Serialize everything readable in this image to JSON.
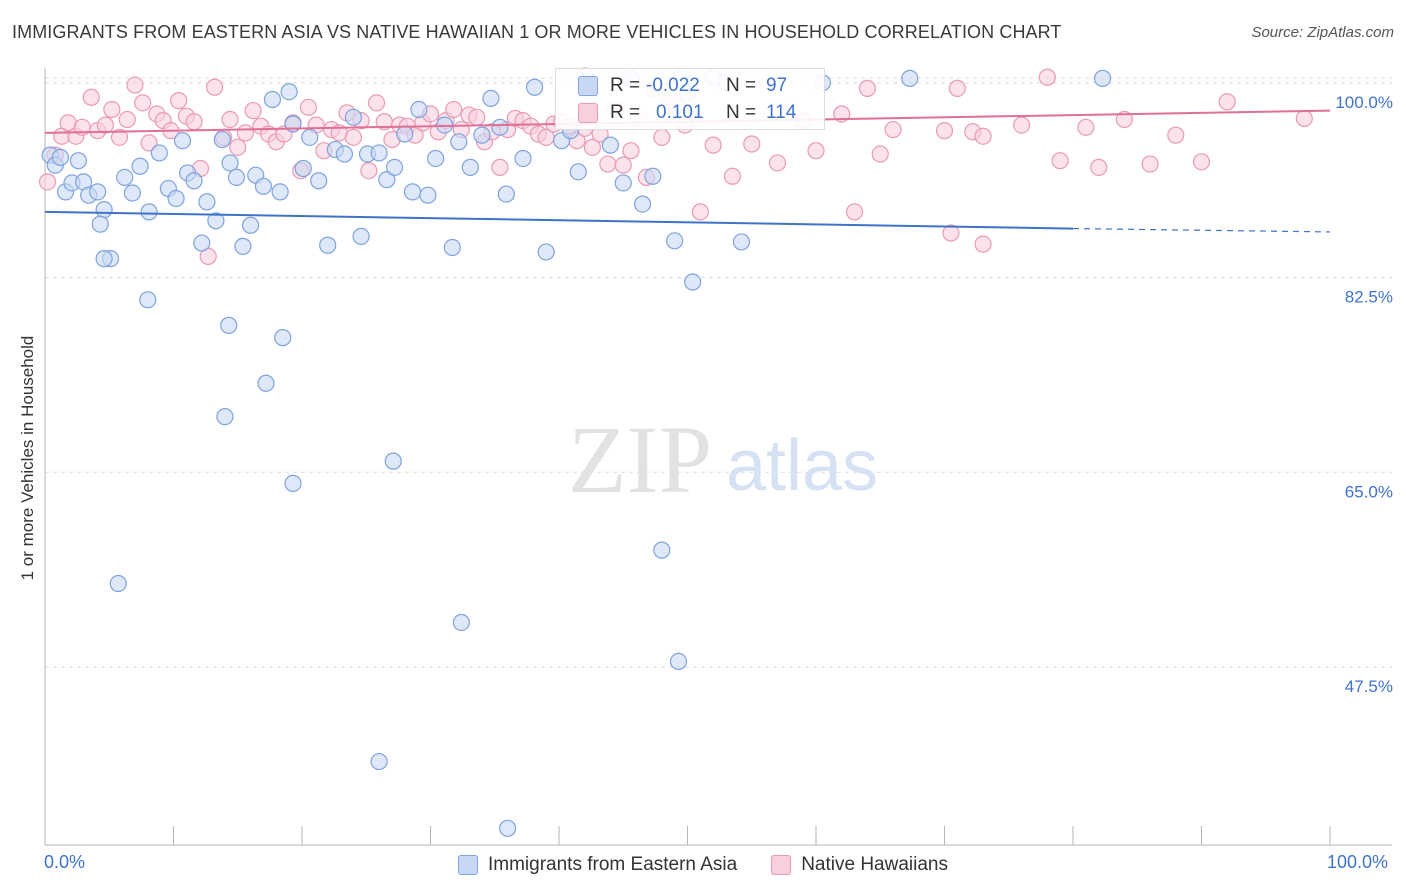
{
  "title": "IMMIGRANTS FROM EASTERN ASIA VS NATIVE HAWAIIAN 1 OR MORE VEHICLES IN HOUSEHOLD CORRELATION CHART",
  "source": "Source: ZipAtlas.com",
  "watermark": {
    "zip": "ZIP",
    "atlas": "atlas"
  },
  "colors": {
    "blue_fill": "#c8d8f4",
    "blue_stroke": "#7ea3dd",
    "blue_line": "#3f73c9",
    "pink_fill": "#f8cfdd",
    "pink_stroke": "#e99ab6",
    "pink_line": "#e07095",
    "tick_text": "#3f73c9",
    "grid": "#dcdcdc"
  },
  "stats": {
    "blue": {
      "r_label": "R =",
      "r_value": "-0.022",
      "n_label": "N =",
      "n_value": "97"
    },
    "pink": {
      "r_label": "R =",
      "r_value": "0.101",
      "n_label": "N =",
      "n_value": "114"
    }
  },
  "chart_data": {
    "type": "scatter",
    "title": "IMMIGRANTS FROM EASTERN ASIA VS NATIVE HAWAIIAN 1 OR MORE VEHICLES IN HOUSEHOLD CORRELATION CHART",
    "xlabel": "",
    "ylabel": "1 or more Vehicles in Household",
    "xlim": [
      0,
      100
    ],
    "ylim": [
      31.5,
      102.5
    ],
    "x_tick_labels": {
      "left": "0.0%",
      "right": "100.0%"
    },
    "y_ticks": [
      {
        "value": 100.0,
        "label": "100.0%"
      },
      {
        "value": 82.5,
        "label": "82.5%"
      },
      {
        "value": 65.0,
        "label": "65.0%"
      },
      {
        "value": 47.5,
        "label": "47.5%"
      }
    ],
    "legend": [
      "Immigrants from Eastern Asia",
      "Native Hawaiians"
    ],
    "series": [
      {
        "name": "Immigrants from Eastern Asia",
        "color": "#7ea3dd",
        "trend": {
          "x0": 0,
          "y0": 88.4,
          "x1": 80,
          "y1": 86.9,
          "dash_to": 100,
          "dash_y": 86.6
        },
        "points": [
          [
            0.4,
            93.5
          ],
          [
            0.8,
            92.6
          ],
          [
            1.2,
            93.3
          ],
          [
            1.6,
            90.2
          ],
          [
            2.1,
            91.0
          ],
          [
            2.6,
            93.0
          ],
          [
            3.0,
            91.1
          ],
          [
            3.4,
            89.9
          ],
          [
            4.1,
            90.2
          ],
          [
            4.6,
            88.6
          ],
          [
            5.1,
            84.2
          ],
          [
            4.3,
            87.3
          ],
          [
            6.2,
            91.5
          ],
          [
            6.8,
            90.1
          ],
          [
            7.4,
            92.5
          ],
          [
            8.1,
            88.4
          ],
          [
            8.9,
            93.7
          ],
          [
            9.6,
            90.5
          ],
          [
            10.2,
            89.6
          ],
          [
            10.7,
            94.8
          ],
          [
            11.1,
            91.9
          ],
          [
            11.6,
            91.2
          ],
          [
            12.2,
            85.6
          ],
          [
            12.6,
            89.3
          ],
          [
            13.3,
            87.6
          ],
          [
            13.8,
            94.9
          ],
          [
            14.4,
            92.8
          ],
          [
            14.9,
            91.5
          ],
          [
            15.4,
            85.3
          ],
          [
            16.0,
            87.2
          ],
          [
            16.4,
            91.7
          ],
          [
            17.0,
            90.7
          ],
          [
            17.7,
            98.5
          ],
          [
            18.3,
            90.2
          ],
          [
            19.0,
            99.2
          ],
          [
            19.3,
            96.3
          ],
          [
            20.1,
            92.3
          ],
          [
            20.6,
            95.1
          ],
          [
            21.3,
            91.2
          ],
          [
            22.0,
            85.4
          ],
          [
            22.6,
            94.0
          ],
          [
            23.3,
            93.6
          ],
          [
            24.0,
            96.9
          ],
          [
            24.6,
            86.2
          ],
          [
            25.1,
            93.6
          ],
          [
            26.0,
            93.7
          ],
          [
            26.6,
            91.3
          ],
          [
            27.2,
            92.4
          ],
          [
            28.0,
            95.4
          ],
          [
            28.6,
            90.2
          ],
          [
            29.1,
            97.6
          ],
          [
            29.8,
            89.9
          ],
          [
            30.4,
            93.2
          ],
          [
            31.1,
            96.2
          ],
          [
            31.7,
            85.2
          ],
          [
            32.2,
            94.7
          ],
          [
            33.1,
            92.4
          ],
          [
            34.0,
            95.3
          ],
          [
            34.7,
            98.6
          ],
          [
            35.4,
            96.0
          ],
          [
            35.9,
            90.0
          ],
          [
            37.2,
            93.2
          ],
          [
            38.1,
            99.6
          ],
          [
            39.0,
            84.8
          ],
          [
            40.2,
            94.8
          ],
          [
            40.9,
            95.7
          ],
          [
            41.5,
            92.0
          ],
          [
            42.0,
            100.6
          ],
          [
            44.0,
            94.4
          ],
          [
            45.6,
            100.4
          ],
          [
            45.0,
            91.0
          ],
          [
            46.5,
            89.1
          ],
          [
            47.3,
            91.6
          ],
          [
            49.0,
            85.8
          ],
          [
            50.0,
            99.1
          ],
          [
            49.5,
            100.5
          ],
          [
            50.4,
            82.1
          ],
          [
            52.0,
            100.5
          ],
          [
            53.0,
            100.0
          ],
          [
            54.2,
            85.7
          ],
          [
            60.5,
            100.0
          ],
          [
            67.3,
            100.4
          ],
          [
            82.3,
            100.4
          ],
          [
            4.6,
            84.2
          ],
          [
            8.0,
            80.5
          ],
          [
            14.3,
            78.2
          ],
          [
            18.5,
            77.1
          ],
          [
            17.2,
            73.0
          ],
          [
            14.0,
            70.0
          ],
          [
            27.1,
            66.0
          ],
          [
            19.3,
            64.0
          ],
          [
            48.0,
            58.0
          ],
          [
            5.7,
            55.0
          ],
          [
            32.4,
            51.5
          ],
          [
            49.3,
            48.0
          ],
          [
            26.0,
            39.0
          ],
          [
            36.0,
            33.0
          ]
        ]
      },
      {
        "name": "Native Hawaiians",
        "color": "#e99ab6",
        "trend": {
          "x0": 0,
          "y0": 95.5,
          "x1": 100,
          "y1": 97.5
        },
        "points": [
          [
            0.2,
            91.1
          ],
          [
            0.8,
            93.5
          ],
          [
            1.3,
            95.2
          ],
          [
            1.8,
            96.4
          ],
          [
            2.4,
            95.2
          ],
          [
            2.9,
            96.0
          ],
          [
            3.6,
            98.7
          ],
          [
            4.1,
            95.7
          ],
          [
            4.7,
            96.2
          ],
          [
            5.2,
            97.6
          ],
          [
            5.8,
            95.1
          ],
          [
            6.4,
            96.7
          ],
          [
            7.0,
            99.8
          ],
          [
            7.6,
            98.2
          ],
          [
            8.1,
            94.6
          ],
          [
            8.7,
            97.2
          ],
          [
            9.2,
            96.6
          ],
          [
            9.8,
            95.7
          ],
          [
            10.4,
            98.4
          ],
          [
            11.0,
            97.0
          ],
          [
            11.6,
            96.5
          ],
          [
            12.1,
            92.3
          ],
          [
            12.7,
            84.4
          ],
          [
            13.2,
            99.6
          ],
          [
            13.9,
            95.1
          ],
          [
            14.4,
            96.7
          ],
          [
            15.0,
            94.2
          ],
          [
            15.6,
            95.5
          ],
          [
            16.2,
            97.5
          ],
          [
            16.8,
            96.1
          ],
          [
            17.4,
            95.4
          ],
          [
            18.0,
            94.7
          ],
          [
            18.6,
            95.4
          ],
          [
            19.3,
            96.4
          ],
          [
            19.9,
            92.1
          ],
          [
            20.5,
            97.8
          ],
          [
            21.1,
            96.2
          ],
          [
            21.7,
            93.9
          ],
          [
            22.3,
            95.8
          ],
          [
            22.9,
            95.5
          ],
          [
            23.5,
            97.3
          ],
          [
            24.0,
            95.1
          ],
          [
            24.6,
            96.6
          ],
          [
            25.2,
            92.1
          ],
          [
            25.8,
            98.2
          ],
          [
            26.4,
            96.5
          ],
          [
            27.0,
            94.9
          ],
          [
            27.6,
            96.2
          ],
          [
            28.2,
            96.1
          ],
          [
            28.8,
            95.3
          ],
          [
            29.4,
            96.4
          ],
          [
            30.0,
            97.2
          ],
          [
            30.6,
            95.6
          ],
          [
            31.2,
            96.6
          ],
          [
            31.8,
            97.6
          ],
          [
            32.4,
            95.8
          ],
          [
            33.0,
            97.1
          ],
          [
            33.6,
            96.9
          ],
          [
            34.2,
            94.7
          ],
          [
            34.8,
            95.6
          ],
          [
            35.4,
            92.4
          ],
          [
            36.0,
            95.8
          ],
          [
            36.6,
            96.8
          ],
          [
            37.2,
            96.6
          ],
          [
            37.8,
            96.1
          ],
          [
            38.4,
            95.4
          ],
          [
            39.0,
            95.1
          ],
          [
            39.6,
            96.3
          ],
          [
            40.2,
            96.5
          ],
          [
            40.8,
            96.1
          ],
          [
            41.4,
            94.8
          ],
          [
            42.0,
            95.9
          ],
          [
            42.6,
            94.2
          ],
          [
            43.2,
            95.4
          ],
          [
            43.8,
            92.7
          ],
          [
            44.4,
            97.6
          ],
          [
            45.0,
            92.6
          ],
          [
            45.6,
            93.9
          ],
          [
            46.2,
            96.8
          ],
          [
            46.8,
            91.5
          ],
          [
            47.4,
            99.4
          ],
          [
            48.0,
            95.1
          ],
          [
            48.6,
            98.4
          ],
          [
            49.2,
            97.9
          ],
          [
            49.8,
            96.2
          ],
          [
            52.0,
            94.4
          ],
          [
            53.5,
            91.6
          ],
          [
            55.0,
            94.5
          ],
          [
            57.0,
            92.8
          ],
          [
            59.0,
            96.6
          ],
          [
            60.0,
            93.9
          ],
          [
            62.0,
            97.2
          ],
          [
            64.0,
            99.5
          ],
          [
            65.0,
            93.6
          ],
          [
            66.0,
            95.8
          ],
          [
            70.0,
            95.7
          ],
          [
            71.0,
            99.5
          ],
          [
            72.2,
            95.6
          ],
          [
            73.0,
            95.2
          ],
          [
            76.0,
            96.2
          ],
          [
            78.0,
            100.5
          ],
          [
            79.0,
            93.0
          ],
          [
            81.0,
            96.0
          ],
          [
            82.0,
            92.4
          ],
          [
            84.0,
            96.7
          ],
          [
            86.0,
            92.7
          ],
          [
            88.0,
            95.3
          ],
          [
            90.0,
            92.9
          ],
          [
            92.0,
            98.3
          ],
          [
            98.0,
            96.8
          ],
          [
            51.0,
            88.4
          ],
          [
            63.0,
            88.4
          ],
          [
            70.5,
            86.5
          ],
          [
            73.0,
            85.5
          ]
        ]
      }
    ]
  }
}
